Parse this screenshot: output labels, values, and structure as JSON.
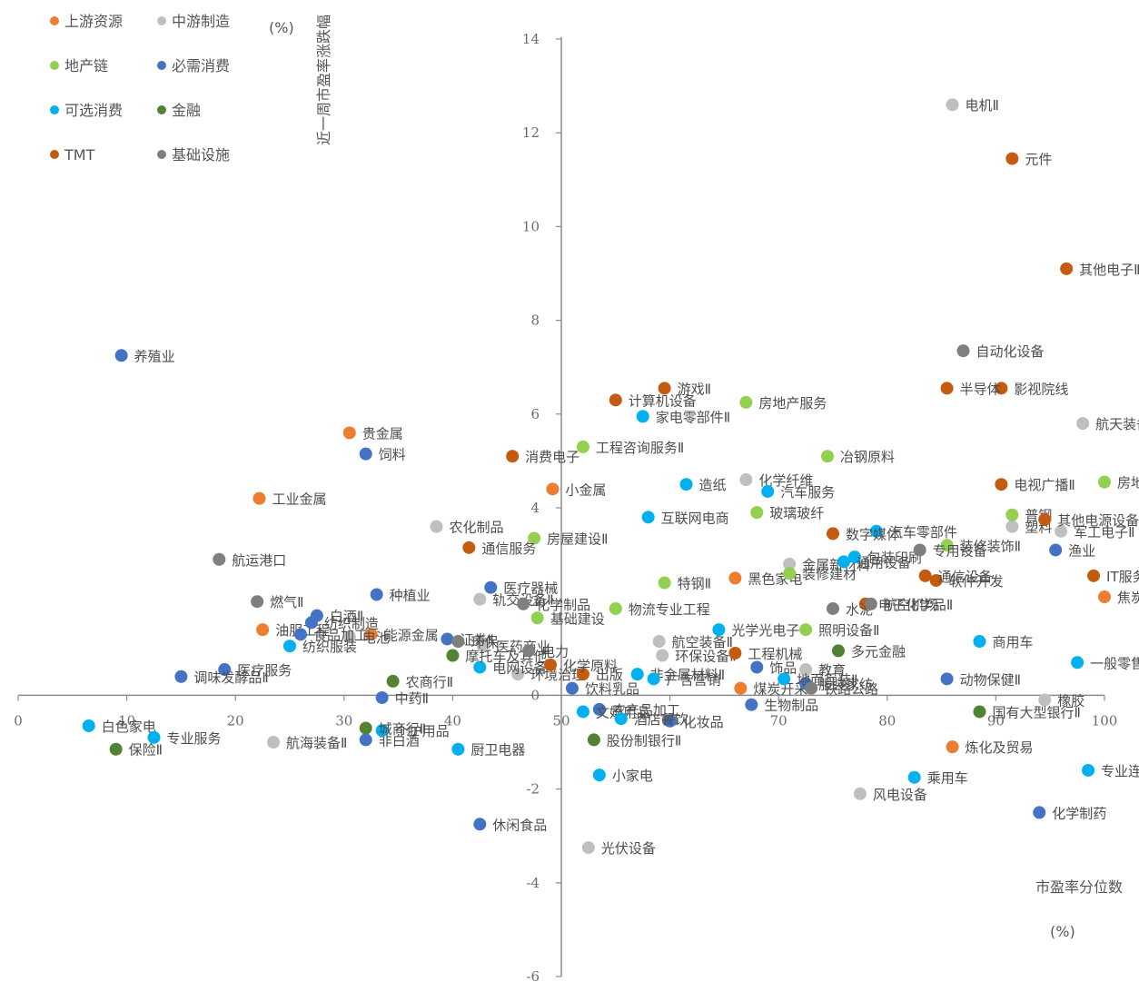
{
  "chart_data": {
    "type": "scatter",
    "xlabel": "市盈率分位数",
    "xunit": "(%)",
    "ylabel": "近一周市盈率涨跌幅",
    "yunit": "(%)",
    "xlim": [
      0,
      100
    ],
    "ylim": [
      -6,
      14
    ],
    "xticks": [
      0,
      10,
      20,
      30,
      40,
      50,
      60,
      70,
      80,
      90,
      100
    ],
    "yticks": [
      -6,
      -4,
      -2,
      0,
      2,
      4,
      6,
      8,
      10,
      12,
      14
    ],
    "grid": false,
    "legend_position": "top-left",
    "series": [
      {
        "name": "上游资源",
        "color": "#ED7D31",
        "points": [
          {
            "label": "贵金属",
            "x": 30.5,
            "y": 5.6
          },
          {
            "label": "工业金属",
            "x": 22.2,
            "y": 4.2
          },
          {
            "label": "小金属",
            "x": 49.2,
            "y": 4.4
          },
          {
            "label": "能源金属",
            "x": 32.5,
            "y": 1.3
          },
          {
            "label": "油服工程",
            "x": 22.5,
            "y": 1.4
          },
          {
            "label": "焦炭Ⅱ",
            "x": 100.0,
            "y": 2.1
          },
          {
            "label": "黑色家电",
            "x": 66.0,
            "y": 2.5
          },
          {
            "label": "煤炭开采",
            "x": 66.5,
            "y": 0.15
          },
          {
            "label": "炼化及贸易",
            "x": 86.0,
            "y": -1.1
          }
        ]
      },
      {
        "name": "中游制造",
        "color": "#BFBFBF",
        "points": [
          {
            "label": "电机Ⅱ",
            "x": 86.0,
            "y": 12.6
          },
          {
            "label": "航天装备Ⅱ",
            "x": 98.0,
            "y": 5.8
          },
          {
            "label": "化学纤维",
            "x": 67.0,
            "y": 4.6
          },
          {
            "label": "农化制品",
            "x": 38.5,
            "y": 3.6
          },
          {
            "label": "塑料",
            "x": 91.5,
            "y": 3.6
          },
          {
            "label": "军工电子Ⅱ",
            "x": 96.0,
            "y": 3.5
          },
          {
            "label": "金属新材料",
            "x": 71.0,
            "y": 2.8
          },
          {
            "label": "轨交设备Ⅱ",
            "x": 42.5,
            "y": 2.05
          },
          {
            "label": "电池",
            "x": 30.5,
            "y": 1.25
          },
          {
            "label": "医药商业",
            "x": 42.8,
            "y": 1.05
          },
          {
            "label": "环境治理",
            "x": 46.0,
            "y": 0.45
          },
          {
            "label": "航空装备Ⅱ",
            "x": 59.0,
            "y": 1.15
          },
          {
            "label": "环保设备Ⅱ",
            "x": 59.3,
            "y": 0.85
          },
          {
            "label": "橡胶",
            "x": 94.5,
            "y": -0.1
          },
          {
            "label": "航海装备Ⅱ",
            "x": 23.5,
            "y": -1.0
          },
          {
            "label": "风电设备",
            "x": 77.5,
            "y": -2.1
          },
          {
            "label": "光伏设备",
            "x": 52.5,
            "y": -3.25
          },
          {
            "label": "教育",
            "x": 72.5,
            "y": 0.55
          }
        ]
      },
      {
        "name": "地产链",
        "color": "#92D050",
        "points": [
          {
            "label": "房地产服务",
            "x": 67.0,
            "y": 6.25
          },
          {
            "label": "工程咨询服务Ⅱ",
            "x": 52.0,
            "y": 5.3
          },
          {
            "label": "冶钢原料",
            "x": 74.5,
            "y": 5.1
          },
          {
            "label": "房地产开发",
            "x": 100.0,
            "y": 4.55
          },
          {
            "label": "普钢",
            "x": 91.5,
            "y": 3.85
          },
          {
            "label": "玻璃玻纤",
            "x": 68.0,
            "y": 3.9
          },
          {
            "label": "房屋建设Ⅱ",
            "x": 47.5,
            "y": 3.35
          },
          {
            "label": "特钢Ⅱ",
            "x": 59.5,
            "y": 2.4
          },
          {
            "label": "装修建材",
            "x": 71.0,
            "y": 2.6
          },
          {
            "label": "基础建设",
            "x": 47.8,
            "y": 1.65
          },
          {
            "label": "物流专业工程",
            "x": 55.0,
            "y": 1.85
          },
          {
            "label": "照明设备Ⅱ",
            "x": 72.5,
            "y": 1.4
          },
          {
            "label": "装修装饰Ⅱ",
            "x": 85.5,
            "y": 3.2
          }
        ]
      },
      {
        "name": "必需消费",
        "color": "#4472C4",
        "points": [
          {
            "label": "养殖业",
            "x": 9.5,
            "y": 7.25
          },
          {
            "label": "饲料",
            "x": 32.0,
            "y": 5.15
          },
          {
            "label": "种植业",
            "x": 33.0,
            "y": 2.15
          },
          {
            "label": "医疗器械",
            "x": 43.5,
            "y": 2.3
          },
          {
            "label": "白酒Ⅱ",
            "x": 27.5,
            "y": 1.7
          },
          {
            "label": "纺织制造",
            "x": 27.0,
            "y": 1.55
          },
          {
            "label": "食品加工",
            "x": 26.0,
            "y": 1.3
          },
          {
            "label": "医疗服务",
            "x": 19.0,
            "y": 0.55
          },
          {
            "label": "调味发酵品Ⅱ",
            "x": 15.0,
            "y": 0.4
          },
          {
            "label": "证券Ⅱ",
            "x": 39.5,
            "y": 1.2
          },
          {
            "label": "渔业",
            "x": 95.5,
            "y": 3.1
          },
          {
            "label": "动物保健Ⅱ",
            "x": 85.5,
            "y": 0.35
          },
          {
            "label": "饮料乳品",
            "x": 51.0,
            "y": 0.15
          },
          {
            "label": "服装家纺",
            "x": 72.5,
            "y": 0.25
          },
          {
            "label": "化妆品",
            "x": 60.0,
            "y": -0.55
          },
          {
            "label": "农产品加工",
            "x": 53.5,
            "y": -0.3
          },
          {
            "label": "生物制品",
            "x": 67.5,
            "y": -0.2
          },
          {
            "label": "休闲食品",
            "x": 42.5,
            "y": -2.75
          },
          {
            "label": "非白酒",
            "x": 32.0,
            "y": -0.95
          },
          {
            "label": "化学制药",
            "x": 94.0,
            "y": -2.5
          },
          {
            "label": "中药Ⅱ",
            "x": 33.5,
            "y": -0.05
          },
          {
            "label": "饰品",
            "x": 68.0,
            "y": 0.6
          }
        ]
      },
      {
        "name": "可选消费",
        "color": "#00B0F0",
        "points": [
          {
            "label": "家电零部件Ⅱ",
            "x": 57.5,
            "y": 5.95
          },
          {
            "label": "造纸",
            "x": 61.5,
            "y": 4.5
          },
          {
            "label": "汽车服务",
            "x": 69.0,
            "y": 4.35
          },
          {
            "label": "互联网电商",
            "x": 58.0,
            "y": 3.8
          },
          {
            "label": "汽车零部件",
            "x": 79.0,
            "y": 3.5
          },
          {
            "label": "包装印刷",
            "x": 77.0,
            "y": 2.95
          },
          {
            "label": "光学光电子",
            "x": 64.5,
            "y": 1.4
          },
          {
            "label": "商用车",
            "x": 88.5,
            "y": 1.15
          },
          {
            "label": "纺织服装",
            "x": 25.0,
            "y": 1.05
          },
          {
            "label": "一般零售",
            "x": 97.5,
            "y": 0.7
          },
          {
            "label": "地面兵装Ⅱ",
            "x": 70.5,
            "y": 0.35
          },
          {
            "label": "电网设备",
            "x": 42.5,
            "y": 0.6
          },
          {
            "label": "非金属材料Ⅱ",
            "x": 57.0,
            "y": 0.45
          },
          {
            "label": "白色家电",
            "x": 6.5,
            "y": -0.65
          },
          {
            "label": "专业服务",
            "x": 12.5,
            "y": -0.9
          },
          {
            "label": "个护用品",
            "x": 33.5,
            "y": -0.75
          },
          {
            "label": "厨卫电器",
            "x": 40.5,
            "y": -1.15
          },
          {
            "label": "文娱用品",
            "x": 52.0,
            "y": -0.35
          },
          {
            "label": "小家电",
            "x": 53.5,
            "y": -1.7
          },
          {
            "label": "乘用车",
            "x": 82.5,
            "y": -1.75
          },
          {
            "label": "专业连锁Ⅱ",
            "x": 98.5,
            "y": -1.6
          },
          {
            "label": "酒店餐饮",
            "x": 55.5,
            "y": -0.5
          },
          {
            "label": "广告营销",
            "x": 58.5,
            "y": 0.35
          },
          {
            "label": "通用设备",
            "x": 76.0,
            "y": 2.85
          }
        ]
      },
      {
        "name": "金融",
        "color": "#548235",
        "points": [
          {
            "label": "多元金融",
            "x": 75.5,
            "y": 0.95
          },
          {
            "label": "国有大型银行Ⅱ",
            "x": 88.5,
            "y": -0.35
          },
          {
            "label": "保险Ⅱ",
            "x": 9.0,
            "y": -1.15
          },
          {
            "label": "城商行Ⅱ",
            "x": 32.0,
            "y": -0.7
          },
          {
            "label": "农商行Ⅱ",
            "x": 34.5,
            "y": 0.3
          },
          {
            "label": "摩托车及其他",
            "x": 40.0,
            "y": 0.85
          },
          {
            "label": "股份制银行Ⅱ",
            "x": 53.0,
            "y": -0.95
          }
        ]
      },
      {
        "name": "TMT",
        "color": "#C55A11",
        "points": [
          {
            "label": "元件",
            "x": 91.5,
            "y": 11.45
          },
          {
            "label": "其他电子Ⅱ",
            "x": 96.5,
            "y": 9.1
          },
          {
            "label": "影视院线",
            "x": 90.5,
            "y": 6.55
          },
          {
            "label": "半导体",
            "x": 85.5,
            "y": 6.55
          },
          {
            "label": "游戏Ⅱ",
            "x": 59.5,
            "y": 6.55
          },
          {
            "label": "计算机设备",
            "x": 55.0,
            "y": 6.3
          },
          {
            "label": "消费电子",
            "x": 45.5,
            "y": 5.1
          },
          {
            "label": "电视广播Ⅱ",
            "x": 90.5,
            "y": 4.5
          },
          {
            "label": "数字媒体",
            "x": 75.0,
            "y": 3.45
          },
          {
            "label": "通信服务",
            "x": 41.5,
            "y": 3.15
          },
          {
            "label": "IT服务Ⅱ",
            "x": 99.0,
            "y": 2.55
          },
          {
            "label": "软件开发",
            "x": 84.5,
            "y": 2.45
          },
          {
            "label": "通信设备",
            "x": 83.5,
            "y": 2.55
          },
          {
            "label": "电子化学品Ⅱ",
            "x": 78.0,
            "y": 1.95
          },
          {
            "label": "出版",
            "x": 52.0,
            "y": 0.45
          },
          {
            "label": "化学原料",
            "x": 49.0,
            "y": 0.65
          },
          {
            "label": "工程机械",
            "x": 66.0,
            "y": 0.9
          },
          {
            "label": "其他电源设备Ⅱ",
            "x": 94.5,
            "y": 3.75
          }
        ]
      },
      {
        "name": "基础设施",
        "color": "#7F7F7F",
        "points": [
          {
            "label": "航运港口",
            "x": 18.5,
            "y": 2.9
          },
          {
            "label": "燃气Ⅱ",
            "x": 22.0,
            "y": 2.0
          },
          {
            "label": "自动化设备",
            "x": 87.0,
            "y": 7.35
          },
          {
            "label": "电力",
            "x": 47.0,
            "y": 0.95
          },
          {
            "label": "水泥",
            "x": 75.0,
            "y": 1.85
          },
          {
            "label": "航空机场",
            "x": 78.5,
            "y": 1.95
          },
          {
            "label": "铁路公路",
            "x": 73.0,
            "y": 0.15
          },
          {
            "label": "化学制品",
            "x": 46.5,
            "y": 1.95
          },
          {
            "label": "专用设备",
            "x": 83.0,
            "y": 3.1
          },
          {
            "label": "环保",
            "x": 40.5,
            "y": 1.15
          }
        ]
      }
    ]
  }
}
